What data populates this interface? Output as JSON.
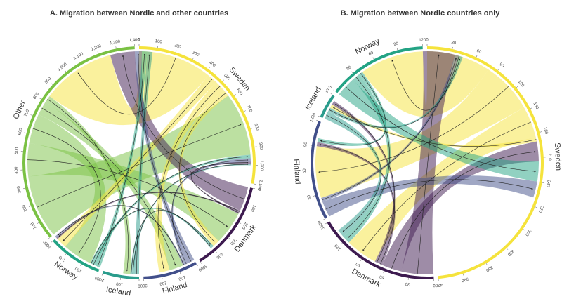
{
  "chart_data": [
    {
      "type": "chord",
      "title": "A. Migration between Nordic and other countries",
      "start_angle_deg": 90,
      "regions": [
        {
          "name": "Sweden",
          "color": "#f5e33c",
          "total": 1100,
          "tick_step": 100
        },
        {
          "name": "Denmark",
          "color": "#3d1a4f",
          "total": 500,
          "tick_step": 100
        },
        {
          "name": "Finland",
          "color": "#414f8a",
          "total": 300,
          "tick_step": 100
        },
        {
          "name": "Iceland",
          "color": "#2a9c8c",
          "total": 200,
          "tick_step": 100
        },
        {
          "name": "Norway",
          "color": "#23a384",
          "total": 300,
          "tick_step": 100
        },
        {
          "name": "Other",
          "color": "#7ac143",
          "total": 1400,
          "tick_step": 100
        }
      ],
      "flows": [
        {
          "from": "Other",
          "to": "Sweden",
          "value": 360
        },
        {
          "from": "Other",
          "to": "Denmark",
          "value": 190
        },
        {
          "from": "Other",
          "to": "Norway",
          "value": 170
        },
        {
          "from": "Other",
          "to": "Finland",
          "value": 80
        },
        {
          "from": "Other",
          "to": "Iceland",
          "value": 40
        },
        {
          "from": "Sweden",
          "to": "Other",
          "value": 420
        },
        {
          "from": "Sweden",
          "to": "Norway",
          "value": 60
        },
        {
          "from": "Sweden",
          "to": "Finland",
          "value": 60
        },
        {
          "from": "Sweden",
          "to": "Denmark",
          "value": 40
        },
        {
          "from": "Denmark",
          "to": "Other",
          "value": 140
        },
        {
          "from": "Finland",
          "to": "Other",
          "value": 40
        },
        {
          "from": "Norway",
          "to": "Other",
          "value": 30
        },
        {
          "from": "Iceland",
          "to": "Other",
          "value": 30
        },
        {
          "from": "Norway",
          "to": "Sweden",
          "value": 20
        },
        {
          "from": "Finland",
          "to": "Sweden",
          "value": 20
        },
        {
          "from": "Denmark",
          "to": "Norway",
          "value": 10
        },
        {
          "from": "Denmark",
          "to": "Sweden",
          "value": 10
        },
        {
          "from": "Iceland",
          "to": "Sweden",
          "value": 10
        },
        {
          "from": "Norway",
          "to": "Denmark",
          "value": 10
        },
        {
          "from": "Iceland",
          "to": "Denmark",
          "value": 10
        },
        {
          "from": "Finland",
          "to": "Norway",
          "value": 10
        }
      ]
    },
    {
      "type": "chord",
      "title": "B. Migration between Nordic countries only",
      "start_angle_deg": 90,
      "regions": [
        {
          "name": "Sweden",
          "color": "#f5e33c",
          "total": 420,
          "tick_step": 30
        },
        {
          "name": "Denmark",
          "color": "#3d1a4f",
          "total": 150,
          "tick_step": 30
        },
        {
          "name": "Finland",
          "color": "#414f8a",
          "total": 120,
          "tick_step": 30
        },
        {
          "name": "Iceland",
          "color": "#2a9c8c",
          "total": 30,
          "tick_step": 30
        },
        {
          "name": "Norway",
          "color": "#23a384",
          "total": 120,
          "tick_step": 30
        }
      ],
      "flows": [
        {
          "from": "Sweden",
          "to": "Norway",
          "value": 80
        },
        {
          "from": "Sweden",
          "to": "Finland",
          "value": 65
        },
        {
          "from": "Sweden",
          "to": "Denmark",
          "value": 40
        },
        {
          "from": "Sweden",
          "to": "Iceland",
          "value": 5
        },
        {
          "from": "Denmark",
          "to": "Norway",
          "value": 40
        },
        {
          "from": "Denmark",
          "to": "Sweden",
          "value": 25
        },
        {
          "from": "Denmark",
          "to": "Finland",
          "value": 5
        },
        {
          "from": "Denmark",
          "to": "Iceland",
          "value": 5
        },
        {
          "from": "Norway",
          "to": "Sweden",
          "value": 25
        },
        {
          "from": "Norway",
          "to": "Denmark",
          "value": 10
        },
        {
          "from": "Norway",
          "to": "Finland",
          "value": 5
        },
        {
          "from": "Finland",
          "to": "Sweden",
          "value": 20
        },
        {
          "from": "Finland",
          "to": "Norway",
          "value": 5
        },
        {
          "from": "Iceland",
          "to": "Denmark",
          "value": 10
        },
        {
          "from": "Iceland",
          "to": "Norway",
          "value": 5
        }
      ]
    }
  ]
}
